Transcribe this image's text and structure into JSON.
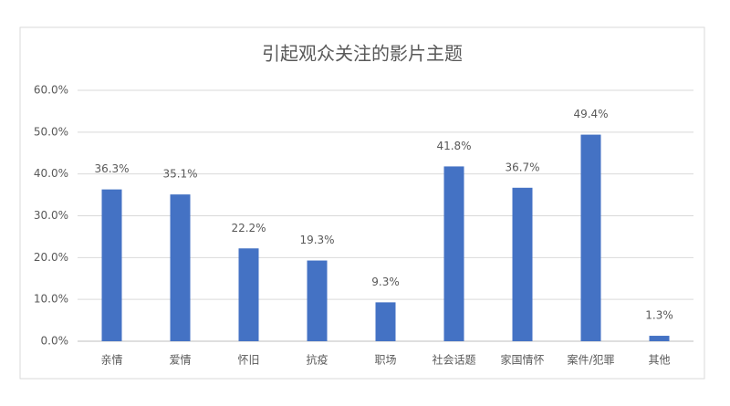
{
  "chart_data": {
    "type": "bar",
    "title": "引起观众关注的影片主题",
    "categories": [
      "亲情",
      "爱情",
      "怀旧",
      "抗疫",
      "职场",
      "社会话题",
      "家国情怀",
      "案件/犯罪",
      "其他"
    ],
    "values": [
      36.3,
      35.1,
      22.2,
      19.3,
      9.3,
      41.8,
      36.7,
      49.4,
      1.3
    ],
    "value_labels": [
      "36.3%",
      "35.1%",
      "22.2%",
      "19.3%",
      "9.3%",
      "41.8%",
      "36.7%",
      "49.4%",
      "1.3%"
    ],
    "color": "#4472c4",
    "ylim": [
      0,
      60
    ],
    "yticks": [
      {
        "value": 0,
        "label": "0.0%"
      },
      {
        "value": 10,
        "label": "10.0%"
      },
      {
        "value": 20,
        "label": "20.0%"
      },
      {
        "value": 30,
        "label": "30.0%"
      },
      {
        "value": 40,
        "label": "40.0%"
      },
      {
        "value": 50,
        "label": "50.0%"
      },
      {
        "value": 60,
        "label": "60.0%"
      }
    ],
    "grid": true
  }
}
